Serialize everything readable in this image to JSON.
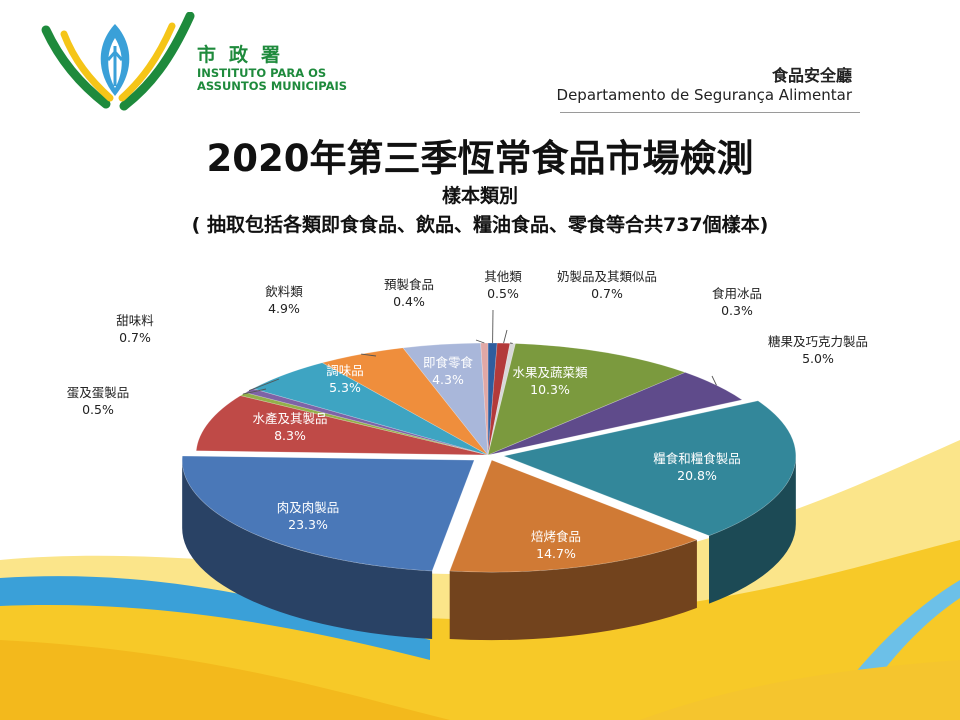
{
  "header": {
    "org_cn": "市政署",
    "org_pt_1": "INSTITUTO PARA OS",
    "org_pt_2": "ASSUNTOS MUNICIPAIS",
    "dept_cn": "食品安全廳",
    "dept_pt": "Departamento de Segurança Alimentar"
  },
  "colors": {
    "green": "#1e8a3c",
    "yellow": "#f5c518",
    "blue": "#3aa0d8"
  },
  "chart_data": {
    "type": "pie",
    "title": "2020年第三季恆常食品市場檢測",
    "subtitle": "樣本類別",
    "note": "( 抽取包括各類即食食品、飲品、糧油食品、零食等合共737個樣本)",
    "slices": [
      {
        "label": "其他類",
        "value": 0.5,
        "display": "0.5%",
        "color": "#2e5d9e"
      },
      {
        "label": "奶製品及其類似品",
        "value": 0.7,
        "display": "0.7%",
        "color": "#b33a3a"
      },
      {
        "label": "食用冰品",
        "value": 0.3,
        "display": "0.3%",
        "color": "#d8d8d8"
      },
      {
        "label": "水果及蔬菜類",
        "value": 10.3,
        "display": "10.3%",
        "color": "#7b9a3e"
      },
      {
        "label": "糖果及巧克力製品",
        "value": 5.0,
        "display": "5.0%",
        "color": "#5f4b8b"
      },
      {
        "label": "糧食和糧食製品",
        "value": 20.8,
        "display": "20.8%",
        "color": "#33879a"
      },
      {
        "label": "焙烤食品",
        "value": 14.7,
        "display": "14.7%",
        "color": "#d07a35"
      },
      {
        "label": "肉及肉製品",
        "value": 23.3,
        "display": "23.3%",
        "color": "#4a78b8"
      },
      {
        "label": "水產及其製品",
        "value": 8.3,
        "display": "8.3%",
        "color": "#bf4a47"
      },
      {
        "label": "蛋及蛋製品",
        "value": 0.5,
        "display": "0.5%",
        "color": "#93b04a"
      },
      {
        "label": "甜味料",
        "value": 0.7,
        "display": "0.7%",
        "color": "#7e63a6"
      },
      {
        "label": "調味品",
        "value": 5.3,
        "display": "5.3%",
        "color": "#3ea4c2"
      },
      {
        "label": "飲料類",
        "value": 4.9,
        "display": "4.9%",
        "color": "#ef8e3c"
      },
      {
        "label": "即食零食",
        "value": 4.3,
        "display": "4.3%",
        "color": "#a9b7da"
      },
      {
        "label": "預製食品",
        "value": 0.4,
        "display": "0.4%",
        "color": "#e1a8a6"
      }
    ]
  }
}
